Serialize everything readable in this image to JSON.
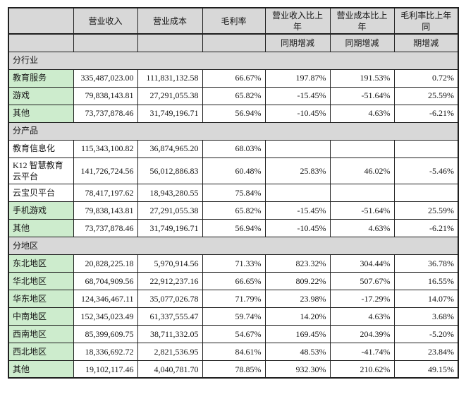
{
  "table": {
    "header_row": [
      "",
      "营业收入",
      "营业成本",
      "毛利率",
      "营业收入比上年",
      "营业成本比上年",
      "毛利率比上年同"
    ],
    "subheader_row": [
      "",
      "",
      "",
      "",
      "同期增减",
      "同期增减",
      "期增减"
    ],
    "sections": [
      {
        "title": "分行业",
        "rows": [
          {
            "label": "教育服务",
            "green": true,
            "values": [
              "335,487,023.00",
              "111,831,132.58",
              "66.67%",
              "197.87%",
              "191.53%",
              "0.72%"
            ]
          },
          {
            "label": "游戏",
            "green": true,
            "values": [
              "79,838,143.81",
              "27,291,055.38",
              "65.82%",
              "-15.45%",
              "-51.64%",
              "25.59%"
            ]
          },
          {
            "label": "其他",
            "green": true,
            "values": [
              "73,737,878.46",
              "31,749,196.71",
              "56.94%",
              "-10.45%",
              "4.63%",
              "-6.21%"
            ]
          }
        ]
      },
      {
        "title": "分产品",
        "rows": [
          {
            "label": "教育信息化",
            "green": false,
            "values": [
              "115,343,100.82",
              "36,874,965.20",
              "68.03%",
              "",
              "",
              ""
            ]
          },
          {
            "label": "K12 智慧教育云平台",
            "green": false,
            "values": [
              "141,726,724.56",
              "56,012,886.83",
              "60.48%",
              "25.83%",
              "46.02%",
              "-5.46%"
            ]
          },
          {
            "label": "云宝贝平台",
            "green": false,
            "values": [
              "78,417,197.62",
              "18,943,280.55",
              "75.84%",
              "",
              "",
              ""
            ]
          },
          {
            "label": "手机游戏",
            "green": true,
            "values": [
              "79,838,143.81",
              "27,291,055.38",
              "65.82%",
              "-15.45%",
              "-51.64%",
              "25.59%"
            ]
          },
          {
            "label": "其他",
            "green": true,
            "values": [
              "73,737,878.46",
              "31,749,196.71",
              "56.94%",
              "-10.45%",
              "4.63%",
              "-6.21%"
            ]
          }
        ]
      },
      {
        "title": "分地区",
        "rows": [
          {
            "label": "东北地区",
            "green": true,
            "values": [
              "20,828,225.18",
              "5,970,914.56",
              "71.33%",
              "823.32%",
              "304.44%",
              "36.78%"
            ]
          },
          {
            "label": "华北地区",
            "green": true,
            "values": [
              "68,704,909.56",
              "22,912,237.16",
              "66.65%",
              "809.22%",
              "507.67%",
              "16.55%"
            ]
          },
          {
            "label": "华东地区",
            "green": true,
            "values": [
              "124,346,467.11",
              "35,077,026.78",
              "71.79%",
              "23.98%",
              "-17.29%",
              "14.07%"
            ]
          },
          {
            "label": "中南地区",
            "green": true,
            "values": [
              "152,345,023.49",
              "61,337,555.47",
              "59.74%",
              "14.20%",
              "4.63%",
              "3.68%"
            ]
          },
          {
            "label": "西南地区",
            "green": true,
            "values": [
              "85,399,609.75",
              "38,711,332.05",
              "54.67%",
              "169.45%",
              "204.39%",
              "-5.20%"
            ]
          },
          {
            "label": "西北地区",
            "green": true,
            "values": [
              "18,336,692.72",
              "2,821,536.95",
              "84.61%",
              "48.53%",
              "-41.74%",
              "23.84%"
            ]
          },
          {
            "label": "其他",
            "green": true,
            "values": [
              "19,102,117.46",
              "4,040,781.70",
              "78.85%",
              "932.30%",
              "210.62%",
              "49.15%"
            ]
          }
        ]
      }
    ],
    "colors": {
      "header_bg": "#d8d8d8",
      "label_green_bg": "#cdeccd",
      "border": "#1f1f1f"
    }
  }
}
